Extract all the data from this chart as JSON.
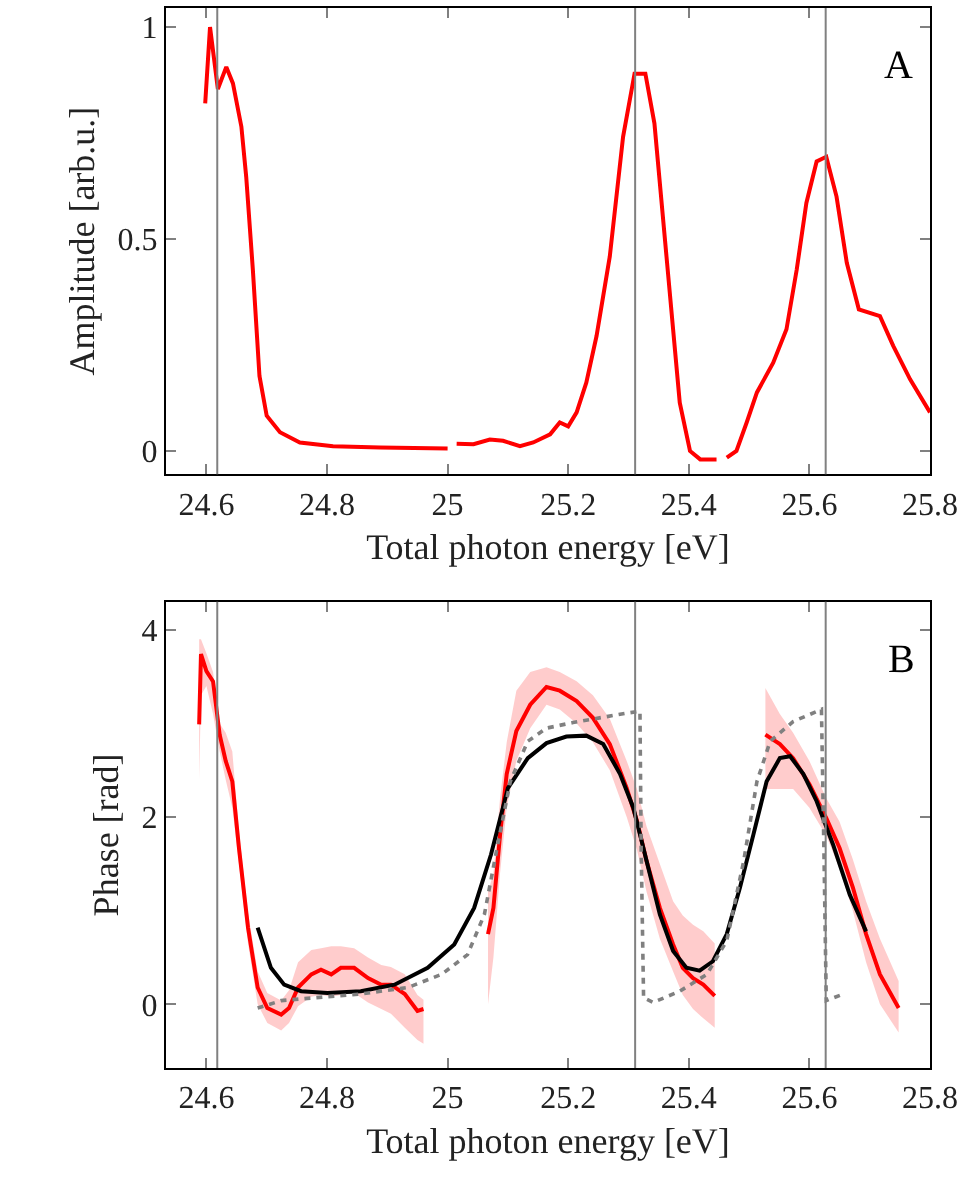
{
  "chart_data": [
    {
      "type": "line",
      "xlabel": "Total photon energy [eV]",
      "ylabel": "Amplitude [arb.u.]",
      "annotations": [
        "A"
      ],
      "xlim": [
        24.533,
        25.8
      ],
      "xticks": [
        24.6,
        24.8,
        25,
        25.2,
        25.4,
        25.6,
        25.8
      ],
      "ylim": [
        -0.055,
        1.045
      ],
      "yticks": [
        0,
        0.5,
        1
      ],
      "marker": "none",
      "series": [
        {
          "color": "#ff0000",
          "line_style": "solid",
          "x": [
            24.598,
            24.606,
            24.619,
            24.633,
            24.644,
            24.658,
            24.666,
            24.677,
            24.688,
            24.7,
            24.722,
            24.755,
            24.81,
            24.888,
            25.0,
            25.008,
            25.015,
            25.043,
            25.07,
            25.092,
            25.12,
            25.142,
            25.17,
            25.186,
            25.2,
            25.214,
            25.23,
            25.247,
            25.269,
            25.291,
            25.31,
            25.328,
            25.343,
            25.363,
            25.385,
            25.402,
            25.419,
            25.446,
            25.455,
            25.463,
            25.479,
            25.496,
            25.513,
            25.54,
            25.562,
            25.579,
            25.595,
            25.612,
            25.628,
            25.645,
            25.662,
            25.682,
            25.717,
            25.739,
            25.767,
            25.8
          ],
          "values": [
            0.82,
            1.0,
            0.854,
            0.906,
            0.867,
            0.765,
            0.647,
            0.428,
            0.177,
            0.083,
            0.044,
            0.02,
            0.011,
            0.008,
            0.006,
            null,
            0.017,
            0.016,
            0.027,
            0.024,
            0.011,
            0.02,
            0.039,
            0.067,
            0.058,
            0.091,
            0.161,
            0.271,
            0.459,
            0.741,
            0.89,
            0.89,
            0.773,
            0.459,
            0.114,
            0.0,
            -0.02,
            -0.02,
            null,
            -0.016,
            0.0,
            0.067,
            0.138,
            0.208,
            0.287,
            0.428,
            0.585,
            0.683,
            0.694,
            0.6,
            0.444,
            0.334,
            0.318,
            0.248,
            0.169,
            0.091
          ]
        }
      ],
      "ref_lines": [
        {
          "axis": "x",
          "value": 24.618,
          "color": "#808080"
        },
        {
          "axis": "x",
          "value": 25.311,
          "color": "#808080"
        },
        {
          "axis": "x",
          "value": 25.627,
          "color": "#808080"
        }
      ]
    },
    {
      "type": "line",
      "xlabel": "Total photon energy [eV]",
      "ylabel": "Phase [rad]",
      "annotations": [
        "B"
      ],
      "xlim": [
        24.533,
        25.8
      ],
      "xticks": [
        24.6,
        24.8,
        25,
        25.2,
        25.4,
        25.6,
        25.8
      ],
      "ylim": [
        -0.68,
        4.3
      ],
      "yticks": [
        0,
        2,
        4
      ],
      "marker": "none",
      "series": [
        {
          "color": "#808080",
          "line_style": "dotted",
          "x": [
            24.685,
            24.724,
            24.779,
            24.856,
            24.934,
            24.99,
            25.033,
            25.061,
            25.082,
            25.104,
            25.133,
            25.164,
            25.208,
            25.252,
            25.297,
            25.319,
            25.321,
            25.325,
            25.341,
            25.385,
            25.43,
            25.463,
            25.491,
            25.513,
            25.535,
            25.573,
            25.62,
            25.624,
            25.628,
            25.656
          ],
          "values": [
            -0.04,
            0.04,
            0.07,
            0.11,
            0.18,
            0.32,
            0.53,
            0.96,
            1.67,
            2.38,
            2.81,
            2.95,
            3.01,
            3.06,
            3.11,
            3.13,
            1.67,
            0.07,
            0.02,
            0.14,
            0.32,
            0.68,
            1.53,
            2.38,
            2.81,
            3.02,
            3.15,
            1.67,
            0.04,
            0.11
          ]
        },
        {
          "color": "#ff0000",
          "line_style": "solid",
          "x": [
            24.588,
            24.591,
            24.6,
            24.611,
            24.622,
            24.632,
            24.643,
            24.654,
            24.669,
            24.685,
            24.701,
            24.724,
            24.737,
            24.752,
            24.774,
            24.79,
            24.807,
            24.823,
            24.845,
            24.868,
            24.89,
            24.906,
            24.929,
            24.95,
            24.96,
            25.0,
            25.067,
            25.076,
            25.087,
            25.098,
            25.114,
            25.137,
            25.164,
            25.186,
            25.214,
            25.241,
            25.269,
            25.297,
            25.314,
            25.33,
            25.352,
            25.374,
            25.39,
            25.407,
            25.424,
            25.443,
            25.5,
            25.527,
            25.551,
            25.573,
            25.6,
            25.628,
            25.65,
            25.672,
            25.694,
            25.717,
            25.748
          ],
          "values": [
            2.99,
            3.74,
            3.56,
            3.45,
            2.88,
            2.6,
            2.38,
            1.67,
            0.82,
            0.18,
            -0.04,
            -0.11,
            -0.04,
            0.18,
            0.32,
            0.37,
            0.32,
            0.39,
            0.39,
            0.28,
            0.21,
            0.21,
            0.11,
            -0.07,
            -0.05,
            null,
            0.75,
            1.03,
            1.81,
            2.46,
            2.92,
            3.2,
            3.39,
            3.35,
            3.24,
            3.06,
            2.78,
            2.31,
            1.96,
            1.53,
            1.03,
            0.64,
            0.39,
            0.28,
            0.21,
            0.09,
            null,
            2.88,
            2.78,
            2.63,
            2.35,
            1.99,
            1.67,
            1.25,
            0.75,
            0.32,
            -0.04
          ],
          "lower": [
            2.4,
            3.3,
            3.4,
            3.1,
            2.7,
            2.4,
            2.1,
            1.5,
            0.65,
            0.0,
            -0.2,
            -0.28,
            -0.2,
            -0.02,
            0.08,
            0.1,
            0.08,
            0.1,
            0.12,
            0.02,
            -0.05,
            -0.1,
            -0.25,
            -0.38,
            -0.42,
            null,
            0.0,
            0.5,
            1.4,
            2.1,
            2.6,
            2.95,
            3.2,
            3.15,
            3.0,
            2.8,
            2.5,
            2.0,
            1.65,
            1.2,
            0.7,
            0.35,
            0.1,
            -0.05,
            -0.15,
            -0.25,
            null,
            2.3,
            2.3,
            2.3,
            2.1,
            1.8,
            1.45,
            1.0,
            0.45,
            0.0,
            -0.3
          ],
          "upper": [
            3.9,
            3.9,
            3.75,
            3.55,
            3.0,
            2.9,
            2.7,
            1.85,
            0.98,
            0.35,
            0.12,
            0.04,
            0.15,
            0.45,
            0.58,
            0.6,
            0.62,
            0.62,
            0.6,
            0.5,
            0.42,
            0.4,
            0.32,
            0.1,
            0.05,
            null,
            1.2,
            1.4,
            2.2,
            2.8,
            3.35,
            3.55,
            3.6,
            3.55,
            3.45,
            3.3,
            3.05,
            2.6,
            2.3,
            1.9,
            1.5,
            1.1,
            0.95,
            0.85,
            0.78,
            0.65,
            null,
            3.38,
            3.1,
            2.9,
            2.6,
            2.2,
            1.95,
            1.55,
            1.1,
            0.7,
            0.25
          ]
        },
        {
          "color": "#000000",
          "line_style": "solid",
          "x": [
            24.685,
            24.707,
            24.729,
            24.757,
            24.801,
            24.856,
            24.912,
            24.967,
            25.011,
            25.044,
            25.072,
            25.1,
            25.133,
            25.164,
            25.197,
            25.23,
            25.258,
            25.286,
            25.308,
            25.33,
            25.352,
            25.374,
            25.396,
            25.418,
            25.44,
            25.463,
            25.485,
            25.507,
            25.529,
            25.551,
            25.568,
            25.59,
            25.612,
            25.639,
            25.667,
            25.694
          ],
          "values": [
            0.82,
            0.39,
            0.21,
            0.14,
            0.12,
            0.14,
            0.21,
            0.39,
            0.64,
            1.03,
            1.6,
            2.31,
            2.63,
            2.79,
            2.86,
            2.87,
            2.78,
            2.46,
            2.1,
            1.53,
            0.96,
            0.57,
            0.39,
            0.36,
            0.46,
            0.75,
            1.25,
            1.81,
            2.38,
            2.63,
            2.65,
            2.46,
            2.17,
            1.71,
            1.17,
            0.78
          ]
        }
      ],
      "ref_lines": [
        {
          "axis": "x",
          "value": 24.618,
          "color": "#808080"
        },
        {
          "axis": "x",
          "value": 25.311,
          "color": "#808080"
        },
        {
          "axis": "x",
          "value": 25.627,
          "color": "#808080"
        }
      ]
    }
  ]
}
